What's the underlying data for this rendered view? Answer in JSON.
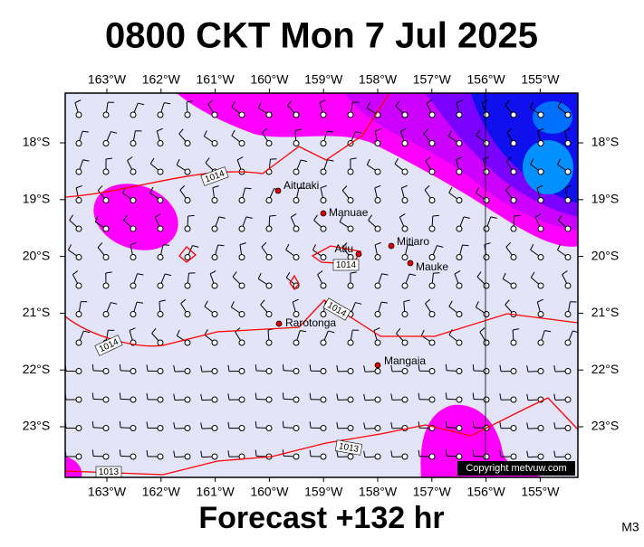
{
  "header": {
    "title": "0800 CKT Mon 7 Jul 2025"
  },
  "map": {
    "lon_labels": [
      "163°W",
      "162°W",
      "161°W",
      "160°W",
      "159°W",
      "158°W",
      "157°W",
      "156°W",
      "155°W"
    ],
    "lat_labels": [
      "18°S",
      "19°S",
      "20°S",
      "21°S",
      "22°S",
      "23°S"
    ],
    "places": [
      "Aitutaki",
      "Manuae",
      "Atiu",
      "Mitiaro",
      "Mauke",
      "Rarotonga",
      "Mangaia"
    ],
    "isobar_labels": [
      "1014",
      "1014",
      "1014",
      "1014",
      "1013",
      "1013"
    ],
    "copyright": "Copyright metvuw.com"
  },
  "footer": {
    "caption": "Forecast +132 hr",
    "code": "M3"
  }
}
